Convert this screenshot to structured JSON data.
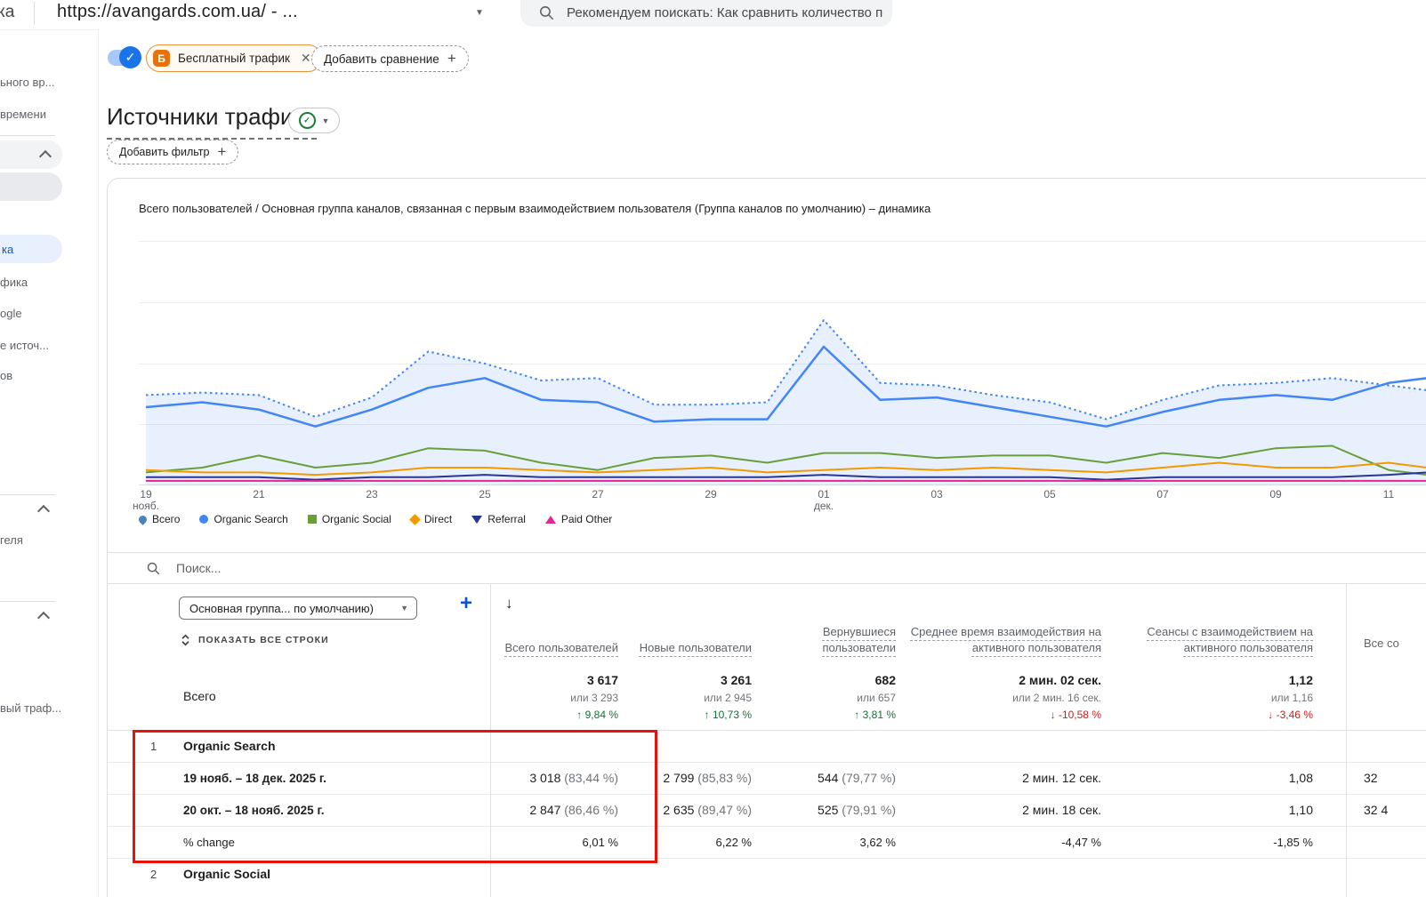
{
  "topbar": {
    "logo_partial": "ка",
    "url": "https://avangards.com.ua/ - ...",
    "search_placeholder": "Рекомендуем поискать:  Как сравнить количество пользователей за по..."
  },
  "sidebar": {
    "items": [
      "ьного вр...",
      "времени",
      "ка",
      "фика",
      "ogle",
      "е источ...",
      "ов",
      "геля",
      "вый траф..."
    ]
  },
  "controls": {
    "chip_badge": "Б",
    "chip_label": "Бесплатный трафик",
    "add_comparison": "Добавить сравнение",
    "add_filter": "Добавить фильтр"
  },
  "page": {
    "title": "Источники трафика"
  },
  "chart_data": {
    "type": "line",
    "title": "Всего пользователей / Основная группа каналов, связанная с первым взаимодействием пользователя (Группа каналов по умолчанию) – динамика",
    "x_ticks": [
      {
        "label": "19",
        "sub": "нояб."
      },
      {
        "label": "21",
        "sub": ""
      },
      {
        "label": "23",
        "sub": ""
      },
      {
        "label": "25",
        "sub": ""
      },
      {
        "label": "27",
        "sub": ""
      },
      {
        "label": "29",
        "sub": ""
      },
      {
        "label": "01",
        "sub": "дек."
      },
      {
        "label": "03",
        "sub": ""
      },
      {
        "label": "05",
        "sub": ""
      },
      {
        "label": "07",
        "sub": ""
      },
      {
        "label": "09",
        "sub": ""
      },
      {
        "label": "11",
        "sub": ""
      }
    ],
    "ylim": [
      0,
      100
    ],
    "grid": true,
    "legend_position": "bottom",
    "series": [
      {
        "name": "Всего — 19 нояб. – 18 дек.",
        "style": "solid",
        "color": "#4285f4",
        "values": [
          32,
          34,
          31,
          24,
          31,
          40,
          44,
          35,
          34,
          26,
          27,
          27,
          57,
          35,
          36,
          32,
          28,
          24,
          30,
          35,
          37,
          35,
          42,
          44
        ]
      },
      {
        "name": "Всего — 20 окт. – 18 нояб.",
        "style": "dotted",
        "color": "#4285f4",
        "fill": "rgba(66,133,244,0.12)",
        "values": [
          37,
          38,
          37,
          28,
          36,
          55,
          50,
          43,
          44,
          33,
          33,
          34,
          68,
          42,
          41,
          37,
          34,
          27,
          35,
          41,
          42,
          44,
          41,
          39
        ]
      },
      {
        "name": "Organic Social",
        "style": "solid",
        "color": "#689f38",
        "values": [
          5,
          7,
          12,
          7,
          9,
          15,
          14,
          9,
          6,
          11,
          12,
          9,
          13,
          13,
          11,
          12,
          12,
          9,
          13,
          11,
          15,
          16,
          6,
          4
        ]
      },
      {
        "name": "Direct",
        "style": "solid",
        "color": "#f29900",
        "values": [
          6,
          5,
          5,
          4,
          5,
          7,
          7,
          6,
          5,
          6,
          7,
          5,
          6,
          7,
          6,
          7,
          6,
          5,
          7,
          9,
          7,
          7,
          9,
          7
        ]
      },
      {
        "name": "Referral",
        "style": "solid",
        "color": "#283593",
        "values": [
          3,
          3,
          3,
          2,
          3,
          3,
          4,
          3,
          3,
          3,
          3,
          3,
          4,
          3,
          3,
          3,
          3,
          2,
          3,
          3,
          3,
          3,
          4,
          5
        ]
      },
      {
        "name": "Paid Other",
        "style": "solid",
        "color": "#e52592",
        "values": [
          1.5,
          1.5,
          1.5,
          1.5,
          1.5,
          1.5,
          1.5,
          1.5,
          1.5,
          1.5,
          1.5,
          1.5,
          1.5,
          1.5,
          1.5,
          1.5,
          1.5,
          1.5,
          1.5,
          1.5,
          1.5,
          1.5,
          1.5,
          1.5
        ]
      }
    ],
    "legend": [
      {
        "label": "Всего",
        "shape": "pin",
        "color": "#4b80ba"
      },
      {
        "label": "Organic Search",
        "shape": "circle",
        "color": "#4285f4"
      },
      {
        "label": "Organic Social",
        "shape": "square",
        "color": "#689f38"
      },
      {
        "label": "Direct",
        "shape": "diamond",
        "color": "#f29900"
      },
      {
        "label": "Referral",
        "shape": "triangle-down",
        "color": "#283593"
      },
      {
        "label": "Paid Other",
        "shape": "triangle-up",
        "color": "#e52592"
      }
    ]
  },
  "table": {
    "search_placeholder": "Поиск...",
    "dimension_dropdown": "Основная группа... по умолчанию)",
    "show_all_rows": "ПОКАЗАТЬ ВСЕ СТРОКИ",
    "columns": [
      "Всего пользователей",
      "Новые пользователи",
      "Вернувшиеся пользователи",
      "Среднее время взаимодействия на активного пользователя",
      "Сеансы с взаимодействием на активного пользователя",
      "Все со"
    ],
    "totals": {
      "label": "Всего",
      "metrics": [
        {
          "value": "3 617",
          "alt": "или 3 293",
          "delta": "9,84 %",
          "dir": "up"
        },
        {
          "value": "3 261",
          "alt": "или 2 945",
          "delta": "10,73 %",
          "dir": "up"
        },
        {
          "value": "682",
          "alt": "или 657",
          "delta": "3,81 %",
          "dir": "up"
        },
        {
          "value": "2 мин. 02 сек.",
          "alt": "или 2 мин. 16 сек.",
          "delta": "-10,58 %",
          "dir": "down"
        },
        {
          "value": "1,12",
          "alt": "или 1,16",
          "delta": "-3,46 %",
          "dir": "down"
        }
      ]
    },
    "groups": [
      {
        "index": "1",
        "name": "Organic Search",
        "rows": [
          {
            "label": "19 нояб. – 18 дек. 2025 г.",
            "cells": [
              {
                "v": "3 018",
                "p": "(83,44 %)"
              },
              {
                "v": "2 799",
                "p": "(85,83 %)"
              },
              {
                "v": "544",
                "p": "(79,77 %)"
              },
              {
                "v": "2 мин. 12 сек.",
                "p": ""
              },
              {
                "v": "1,08",
                "p": ""
              },
              {
                "v": "32",
                "p": ""
              }
            ]
          },
          {
            "label": "20 окт. – 18 нояб. 2025 г.",
            "cells": [
              {
                "v": "2 847",
                "p": "(86,46 %)"
              },
              {
                "v": "2 635",
                "p": "(89,47 %)"
              },
              {
                "v": "525",
                "p": "(79,91 %)"
              },
              {
                "v": "2 мин. 18 сек.",
                "p": ""
              },
              {
                "v": "1,10",
                "p": ""
              },
              {
                "v": "32 4",
                "p": ""
              }
            ]
          }
        ],
        "change": {
          "label": "% change",
          "values": [
            "6,01 %",
            "6,22 %",
            "3,62 %",
            "-4,47 %",
            "-1,85 %",
            ""
          ]
        }
      },
      {
        "index": "2",
        "name": "Organic Social",
        "rows": [],
        "change": null
      }
    ]
  },
  "colors": {
    "accent_blue": "#1a73e8",
    "chip_orange": "#e8710a",
    "positive_green": "#137333",
    "negative_red": "#c5221f",
    "annotation_red": "#e8130a"
  }
}
